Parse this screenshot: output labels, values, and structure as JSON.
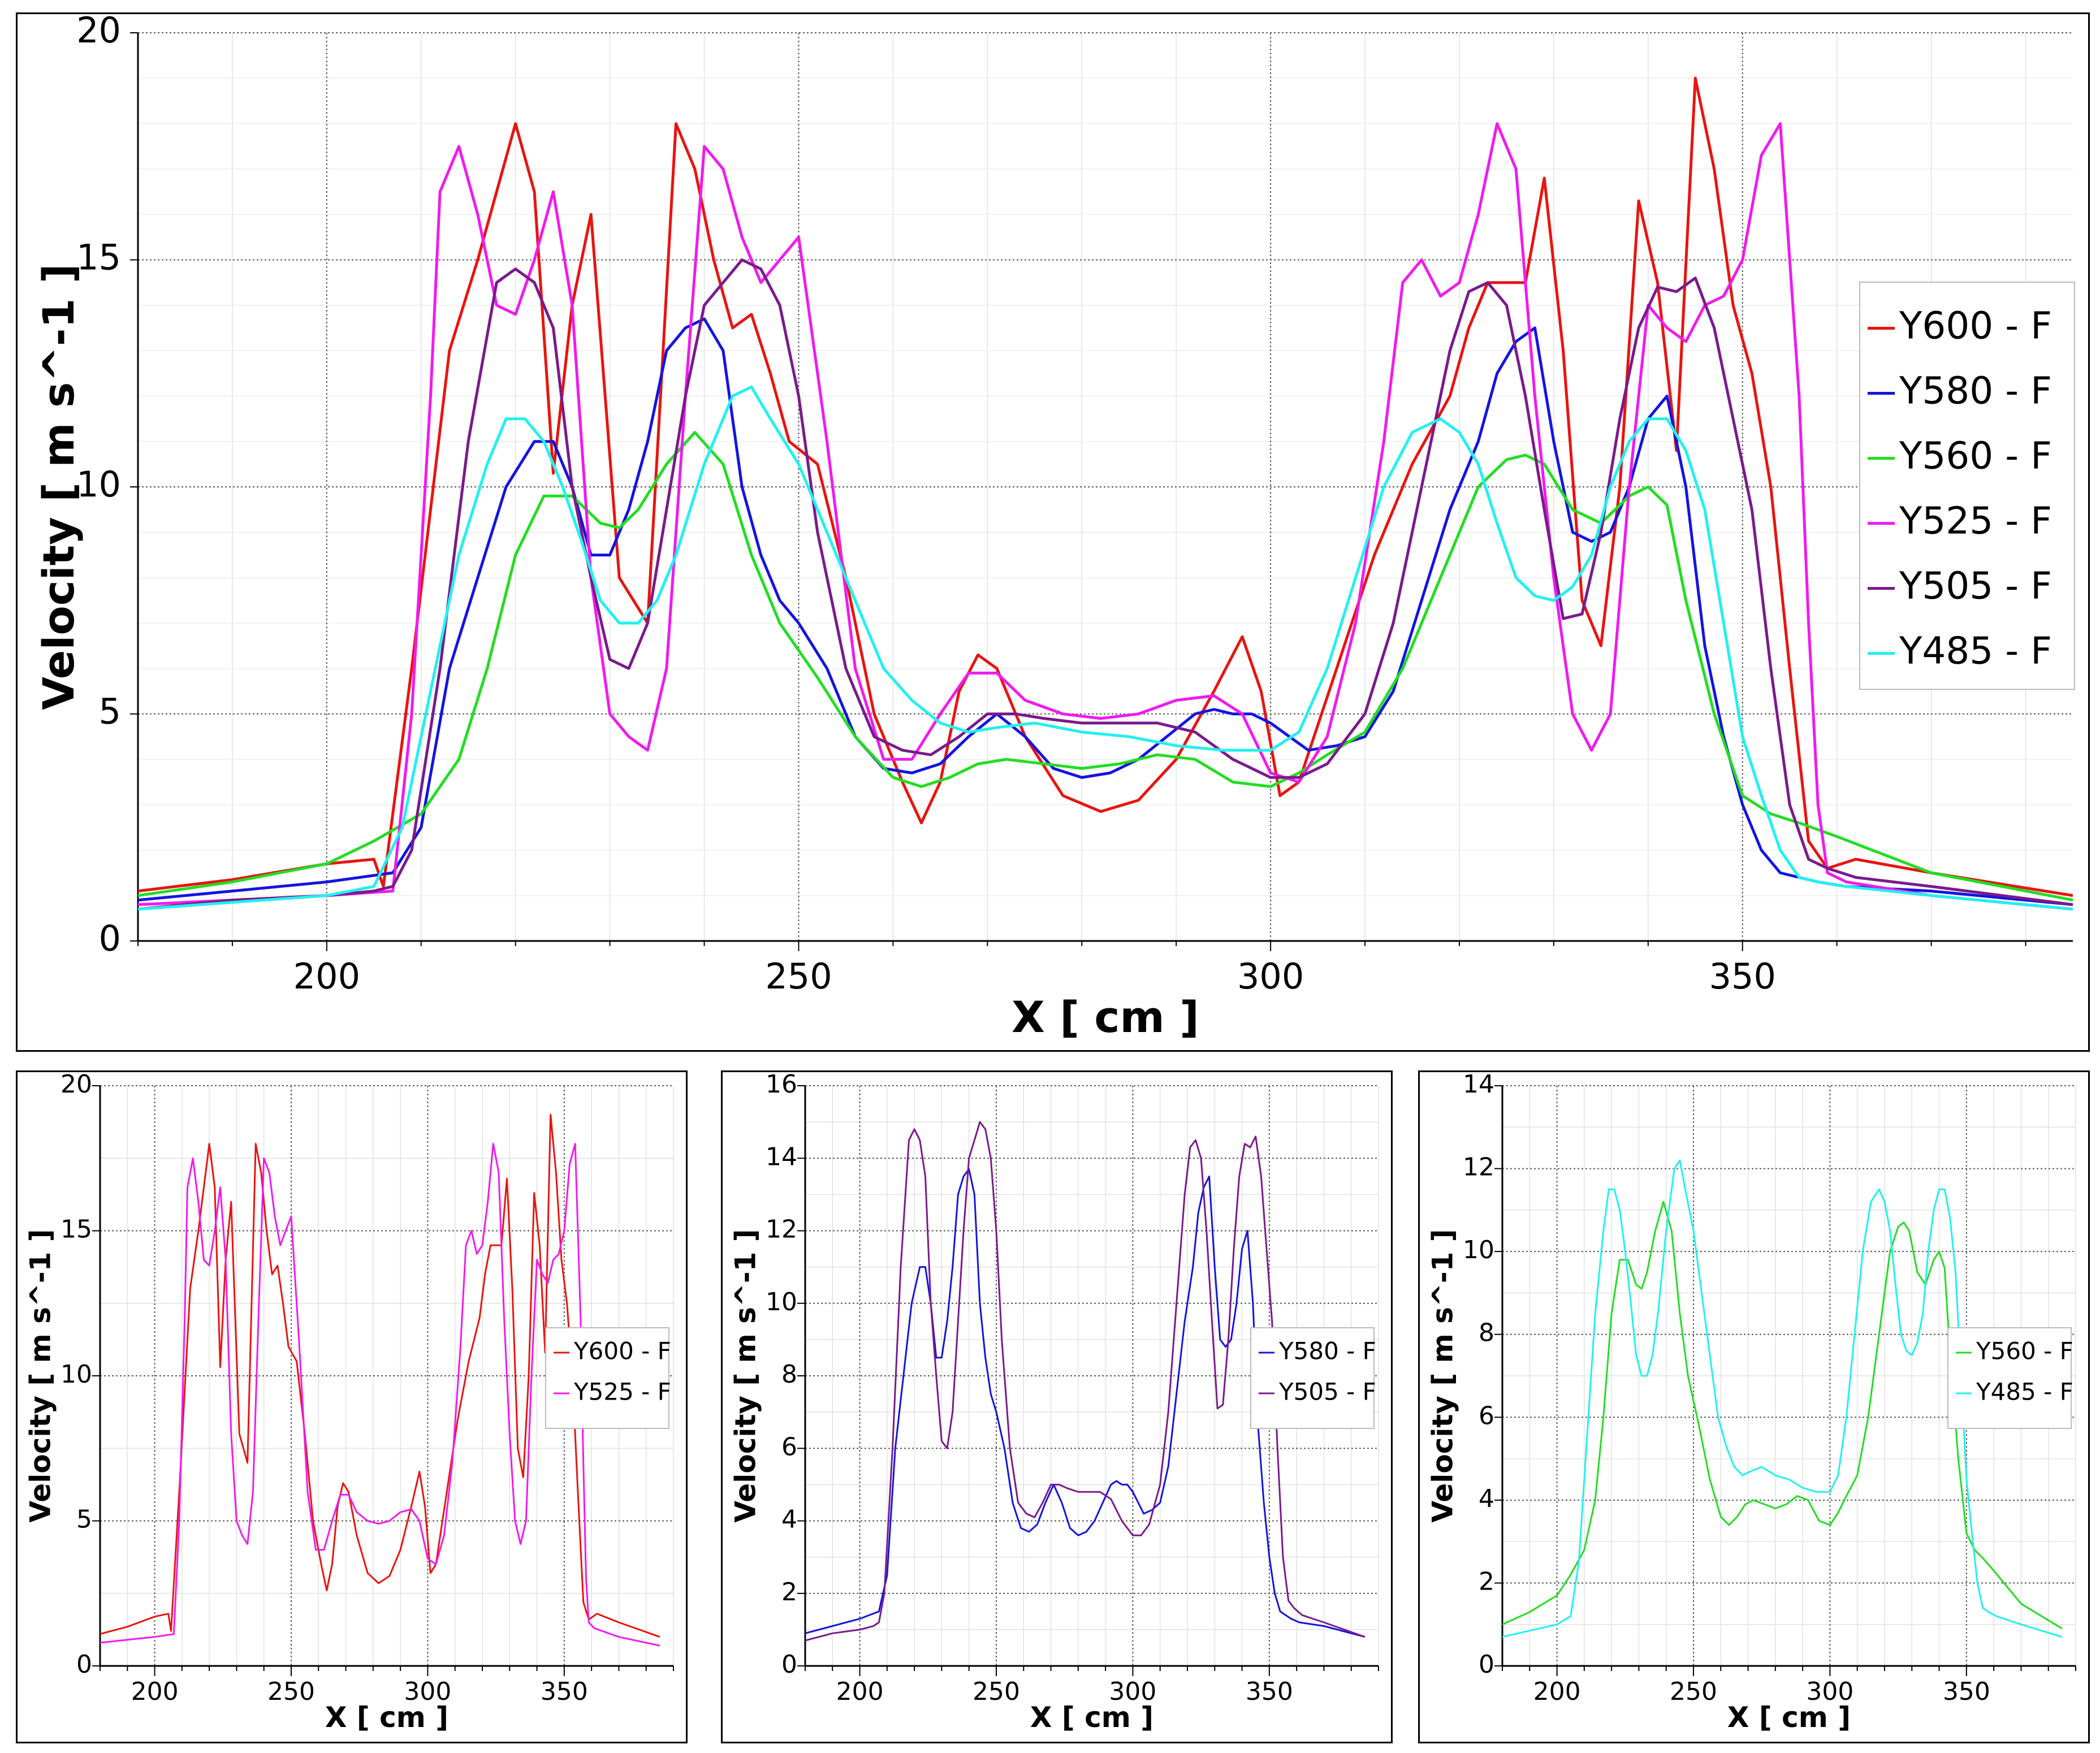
{
  "chart_data": [
    {
      "type": "line",
      "xlabel": "X [ cm ]",
      "ylabel": "Velocity [ m s^-1 ]",
      "xlim": [
        180,
        385
      ],
      "ylim": [
        0,
        20
      ],
      "xticks": [
        200,
        250,
        300,
        350
      ],
      "yticks": [
        0,
        5,
        10,
        15,
        20
      ],
      "grid": true,
      "legend_position": "right",
      "series": [
        {
          "name": "Y600 - F",
          "color": "#e8140f",
          "x": [
            180,
            190,
            200,
            205,
            206,
            209,
            213,
            216,
            218,
            220,
            222,
            224,
            226,
            228,
            231,
            234,
            237,
            239,
            241,
            243,
            245,
            247,
            249,
            252,
            255,
            258,
            261,
            263,
            265,
            267,
            269,
            271,
            274,
            278,
            282,
            286,
            290,
            294,
            297,
            299,
            301,
            303,
            307,
            311,
            315,
            319,
            321,
            323,
            325,
            327,
            329,
            331,
            333,
            335,
            337,
            339,
            341,
            343,
            345,
            347,
            349,
            351,
            353,
            355,
            357,
            359,
            362,
            370,
            385
          ],
          "y": [
            1.1,
            1.35,
            1.7,
            1.8,
            1.2,
            6,
            13,
            15,
            16.5,
            18,
            16.5,
            10.3,
            14,
            16,
            8,
            7,
            18,
            17,
            15,
            13.5,
            13.8,
            12.5,
            11,
            10.5,
            8,
            5,
            3.5,
            2.6,
            3.5,
            5.5,
            6.3,
            6,
            4.5,
            3.2,
            2.85,
            3.1,
            4,
            5.5,
            6.7,
            5.5,
            3.2,
            3.5,
            6,
            8.5,
            10.5,
            12,
            13.5,
            14.5,
            14.5,
            14.5,
            16.8,
            13,
            7.5,
            6.5,
            10,
            16.3,
            14.5,
            10.8,
            19,
            17,
            14,
            12.5,
            10,
            6,
            2.2,
            1.6,
            1.8,
            1.5,
            1.0
          ]
        },
        {
          "name": "Y580 - F",
          "color": "#1414e0",
          "x": [
            180,
            190,
            200,
            207,
            210,
            213,
            216,
            219,
            222,
            224,
            226,
            228,
            230,
            232,
            234,
            236,
            238,
            240,
            242,
            244,
            246,
            248,
            250,
            253,
            256,
            259,
            262,
            265,
            268,
            271,
            274,
            277,
            280,
            283,
            286,
            289,
            292,
            294,
            296,
            298,
            300,
            302,
            304,
            307,
            310,
            313,
            316,
            319,
            322,
            324,
            326,
            328,
            330,
            332,
            334,
            336,
            338,
            340,
            342,
            344,
            346,
            348,
            350,
            352,
            354,
            356,
            358,
            361,
            370,
            385
          ],
          "y": [
            0.9,
            1.1,
            1.3,
            1.5,
            2.5,
            6,
            8,
            10,
            11,
            11,
            10,
            8.5,
            8.5,
            9.5,
            11,
            13,
            13.5,
            13.7,
            13,
            10,
            8.5,
            7.5,
            7,
            6,
            4.5,
            3.8,
            3.7,
            3.9,
            4.5,
            5,
            4.5,
            3.8,
            3.6,
            3.7,
            4,
            4.5,
            5,
            5.1,
            5,
            5,
            4.8,
            4.5,
            4.2,
            4.3,
            4.5,
            5.5,
            7.5,
            9.5,
            11,
            12.5,
            13.2,
            13.5,
            11,
            9,
            8.8,
            9,
            10,
            11.5,
            12,
            10,
            6.5,
            4.5,
            3,
            2,
            1.5,
            1.4,
            1.3,
            1.2,
            1.1,
            0.8
          ]
        },
        {
          "name": "Y560 - F",
          "color": "#22dd22",
          "x": [
            180,
            190,
            200,
            205,
            210,
            214,
            217,
            220,
            223,
            226,
            229,
            231,
            233,
            236,
            239,
            242,
            245,
            248,
            252,
            256,
            260,
            263,
            266,
            269,
            272,
            276,
            280,
            284,
            288,
            292,
            296,
            300,
            303,
            306,
            310,
            314,
            318,
            322,
            325,
            327,
            329,
            332,
            335,
            338,
            340,
            342,
            344,
            347,
            350,
            353,
            356,
            360,
            370,
            385
          ],
          "y": [
            1.0,
            1.3,
            1.7,
            2.2,
            2.8,
            4,
            6,
            8.5,
            9.8,
            9.8,
            9.2,
            9.1,
            9.5,
            10.5,
            11.2,
            10.5,
            8.5,
            7,
            5.8,
            4.5,
            3.6,
            3.4,
            3.6,
            3.9,
            4.0,
            3.9,
            3.8,
            3.9,
            4.1,
            4.0,
            3.5,
            3.4,
            3.7,
            4.1,
            4.6,
            6,
            8,
            10,
            10.6,
            10.7,
            10.5,
            9.5,
            9.2,
            9.8,
            10,
            9.6,
            7.5,
            5,
            3.2,
            2.8,
            2.6,
            2.3,
            1.5,
            0.9
          ]
        },
        {
          "name": "Y525 - F",
          "color": "#f01af0",
          "x": [
            180,
            190,
            200,
            207,
            209,
            211,
            212,
            214,
            216,
            218,
            220,
            222,
            224,
            226,
            228,
            230,
            232,
            234,
            236,
            238,
            240,
            242,
            244,
            246,
            248,
            250,
            253,
            256,
            259,
            262,
            265,
            268,
            271,
            274,
            278,
            282,
            286,
            290,
            294,
            297,
            300,
            303,
            306,
            309,
            312,
            314,
            316,
            318,
            320,
            322,
            324,
            326,
            328,
            330,
            332,
            334,
            336,
            338,
            340,
            342,
            344,
            346,
            348,
            350,
            352,
            354,
            356,
            357,
            358,
            359,
            361,
            370,
            385
          ],
          "y": [
            0.8,
            0.9,
            1.0,
            1.1,
            5,
            12,
            16.5,
            17.5,
            16,
            14,
            13.8,
            15,
            16.5,
            14,
            8,
            5,
            4.5,
            4.2,
            6,
            12,
            17.5,
            17,
            15.5,
            14.5,
            15,
            15.5,
            11,
            6,
            4,
            4,
            5,
            5.9,
            5.9,
            5.3,
            5,
            4.9,
            5,
            5.3,
            5.4,
            5,
            3.7,
            3.5,
            4.5,
            7,
            11,
            14.5,
            15,
            14.2,
            14.5,
            16,
            18,
            17,
            12,
            8,
            5,
            4.2,
            5,
            10,
            14,
            13.5,
            13.2,
            14,
            14.2,
            15,
            17.3,
            18,
            12,
            7,
            3,
            1.5,
            1.3,
            1.0,
            0.7
          ]
        },
        {
          "name": "Y505 - F",
          "color": "#7a1a8c",
          "x": [
            180,
            190,
            200,
            205,
            207,
            209,
            212,
            215,
            218,
            220,
            222,
            224,
            226,
            228,
            230,
            232,
            234,
            236,
            238,
            240,
            242,
            244,
            246,
            248,
            250,
            252,
            255,
            258,
            261,
            264,
            267,
            270,
            273,
            276,
            280,
            284,
            288,
            292,
            296,
            300,
            303,
            306,
            310,
            313,
            316,
            319,
            321,
            323,
            325,
            327,
            329,
            331,
            333,
            335,
            337,
            339,
            341,
            343,
            345,
            347,
            349,
            351,
            353,
            355,
            357,
            359,
            362,
            370,
            385
          ],
          "y": [
            0.7,
            0.9,
            1.0,
            1.1,
            1.2,
            2,
            6,
            11,
            14.5,
            14.8,
            14.5,
            13.5,
            10,
            8,
            6.2,
            6,
            7,
            9.5,
            12,
            14,
            14.5,
            15,
            14.8,
            14,
            12,
            9,
            6,
            4.5,
            4.2,
            4.1,
            4.5,
            5,
            5,
            4.9,
            4.8,
            4.8,
            4.8,
            4.6,
            4,
            3.6,
            3.6,
            3.9,
            5,
            7,
            10,
            13,
            14.3,
            14.5,
            14,
            12,
            9.5,
            7.1,
            7.2,
            9,
            11.5,
            13.5,
            14.4,
            14.3,
            14.6,
            13.5,
            11.5,
            9.5,
            6,
            3,
            1.8,
            1.6,
            1.4,
            1.2,
            0.8
          ]
        },
        {
          "name": "Y485 - F",
          "color": "#22f0f0",
          "x": [
            180,
            190,
            200,
            205,
            208,
            211,
            214,
            217,
            219,
            221,
            223,
            225,
            227,
            229,
            231,
            233,
            235,
            237,
            240,
            243,
            245,
            247,
            250,
            253,
            256,
            259,
            262,
            265,
            268,
            271,
            275,
            280,
            285,
            290,
            295,
            300,
            303,
            306,
            309,
            312,
            315,
            318,
            320,
            322,
            324,
            326,
            328,
            330,
            332,
            334,
            336,
            338,
            340,
            342,
            344,
            346,
            348,
            350,
            352,
            354,
            356,
            358,
            361,
            370,
            385
          ],
          "y": [
            0.7,
            0.85,
            1.0,
            1.2,
            2.5,
            5.5,
            8.5,
            10.5,
            11.5,
            11.5,
            11,
            10,
            8.8,
            7.5,
            7,
            7,
            7.5,
            8.5,
            10.5,
            12,
            12.2,
            11.5,
            10.5,
            9,
            7.5,
            6,
            5.3,
            4.8,
            4.6,
            4.7,
            4.8,
            4.6,
            4.5,
            4.3,
            4.2,
            4.2,
            4.6,
            6,
            8,
            10,
            11.2,
            11.5,
            11.2,
            10.5,
            9.2,
            8,
            7.6,
            7.5,
            7.8,
            8.5,
            10,
            11,
            11.5,
            11.5,
            10.8,
            9.5,
            7,
            4.5,
            3.2,
            2,
            1.4,
            1.3,
            1.2,
            1.0,
            0.7
          ]
        }
      ]
    },
    {
      "type": "line",
      "xlabel": "X [ cm ]",
      "ylabel": "Velocity [ m s^-1 ]",
      "xlim": [
        180,
        390
      ],
      "ylim": [
        0,
        20
      ],
      "xticks": [
        200,
        250,
        300,
        350
      ],
      "yticks": [
        0,
        5,
        10,
        15,
        20
      ],
      "grid": true,
      "legend_position": "right",
      "series_refs": [
        "Y600 - F",
        "Y525 - F"
      ]
    },
    {
      "type": "line",
      "xlabel": "X [ cm ]",
      "ylabel": "Velocity [ m s^-1 ]",
      "xlim": [
        180,
        390
      ],
      "ylim": [
        0,
        16
      ],
      "xticks": [
        200,
        250,
        300,
        350
      ],
      "yticks": [
        0,
        2,
        4,
        6,
        8,
        10,
        12,
        14,
        16
      ],
      "grid": true,
      "legend_position": "right",
      "series_refs": [
        "Y580 - F",
        "Y505 - F"
      ]
    },
    {
      "type": "line",
      "xlabel": "X [ cm ]",
      "ylabel": "Velocity [ m s^-1 ]",
      "xlim": [
        180,
        390
      ],
      "ylim": [
        0,
        14
      ],
      "xticks": [
        200,
        250,
        300,
        350
      ],
      "yticks": [
        0,
        2,
        4,
        6,
        8,
        10,
        12,
        14
      ],
      "grid": true,
      "legend_position": "right",
      "series_refs": [
        "Y560 - F",
        "Y485 - F"
      ]
    }
  ]
}
